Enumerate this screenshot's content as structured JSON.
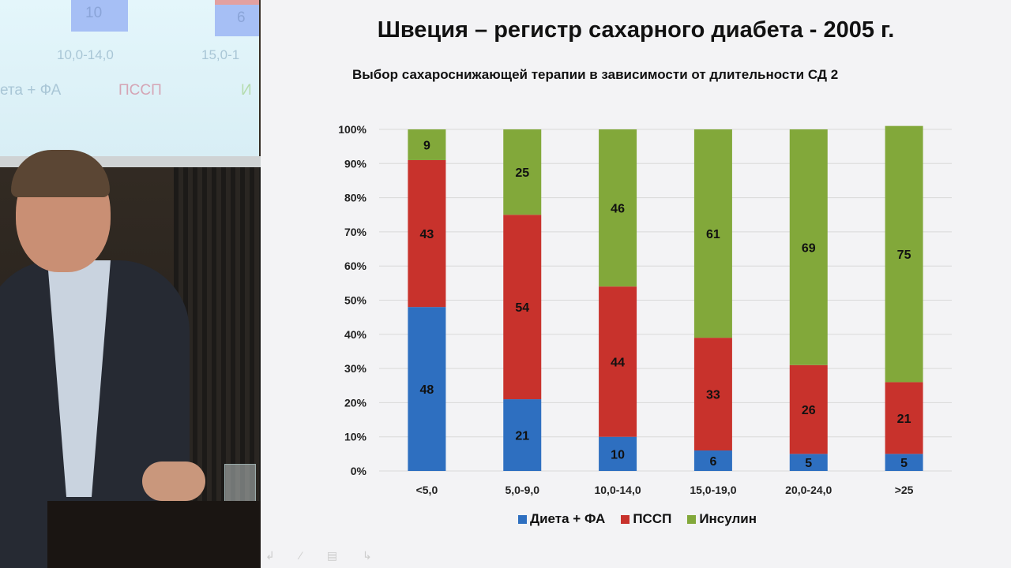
{
  "background_screen": {
    "ghost_values": [
      "10",
      "6"
    ],
    "ghost_categories": [
      "10,0-14,0",
      "15,0-1"
    ],
    "ghost_legend": [
      "ета + ФА",
      "ПССП",
      "И"
    ]
  },
  "chart_data": {
    "type": "bar",
    "stacked": true,
    "percent": true,
    "title": "Швеция – регистр сахарного диабета - 2005 г.",
    "subtitle": "Выбор сахароснижающей терапии в зависимости от длительности СД 2",
    "categories": [
      "<5,0",
      "5,0-9,0",
      "10,0-14,0",
      "15,0-19,0",
      "20,0-24,0",
      ">25"
    ],
    "series": [
      {
        "name": "Диета + ФА",
        "color": "#2e6fc0",
        "values": [
          48,
          21,
          10,
          6,
          5,
          5
        ]
      },
      {
        "name": "ПССП",
        "color": "#c8322c",
        "values": [
          43,
          54,
          44,
          33,
          26,
          21
        ]
      },
      {
        "name": "Инсулин",
        "color": "#82a83a",
        "values": [
          9,
          25,
          46,
          61,
          69,
          75
        ]
      }
    ],
    "yticks": [
      "0%",
      "10%",
      "20%",
      "30%",
      "40%",
      "50%",
      "60%",
      "70%",
      "80%",
      "90%",
      "100%"
    ],
    "ylim": [
      0,
      100
    ],
    "grid": true,
    "legend": "bottom"
  }
}
